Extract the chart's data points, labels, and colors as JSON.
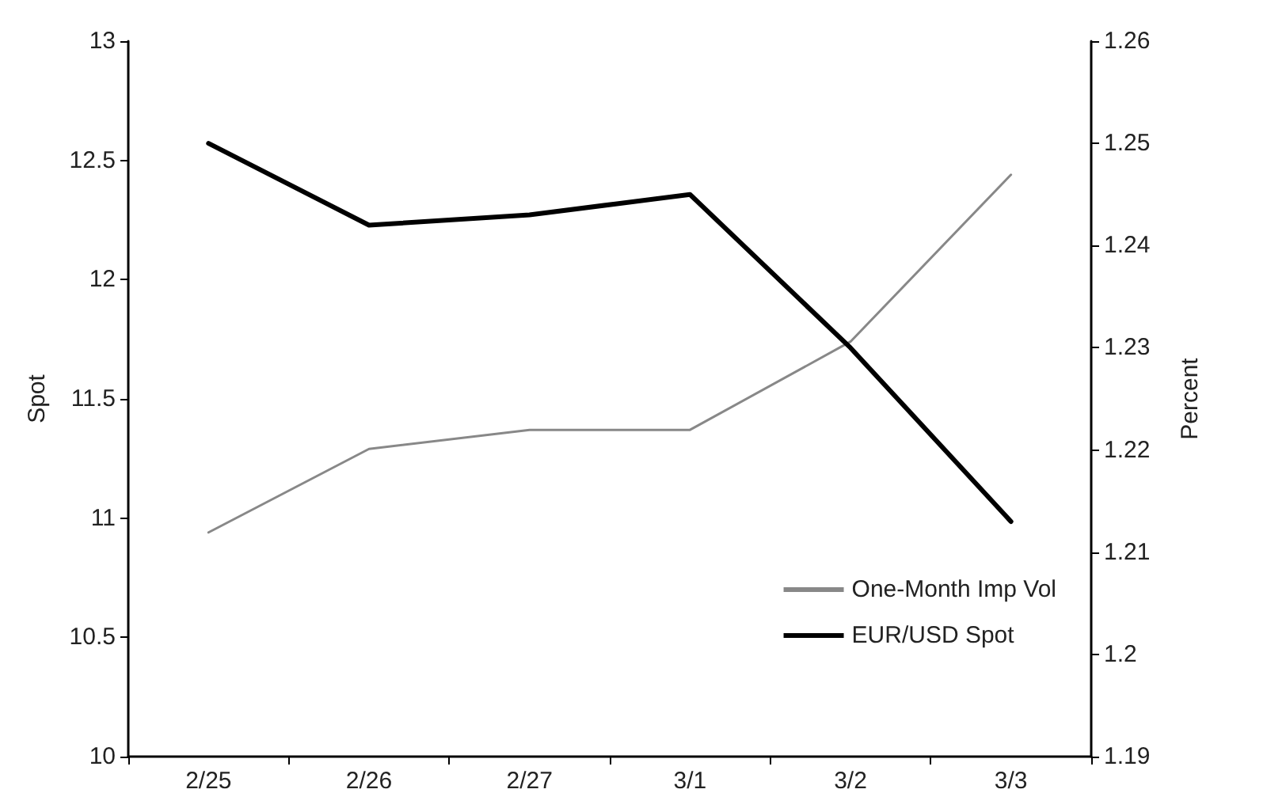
{
  "chart_data": {
    "type": "line",
    "ylabel": "Spot",
    "y2label": "Percent",
    "categories": [
      "2/25",
      "2/26",
      "2/27",
      "3/1",
      "3/2",
      "3/3"
    ],
    "series": [
      {
        "name": "One-Month Imp Vol",
        "color": "#888888",
        "values": [
          10.94,
          11.29,
          11.37,
          11.37,
          11.74,
          12.44
        ]
      },
      {
        "name": "EUR/USD Spot",
        "color": "#000000",
        "axis": "y2",
        "values": [
          1.25,
          1.242,
          1.243,
          1.245,
          1.23,
          1.213
        ]
      }
    ],
    "ylim": [
      10,
      13
    ],
    "yticks": [
      10,
      10.5,
      11,
      11.5,
      12,
      12.5,
      13
    ],
    "y2lim": [
      1.19,
      1.26
    ],
    "y2ticks": [
      1.19,
      1.2,
      1.21,
      1.22,
      1.23,
      1.24,
      1.25,
      1.26
    ],
    "grid": false,
    "legend": "bottom right",
    "marker": "none",
    "line_style": "solid"
  }
}
